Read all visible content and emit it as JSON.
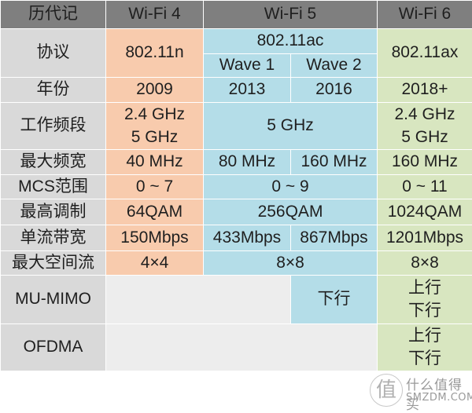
{
  "header": {
    "label_col": "历代记",
    "wifi4": "Wi-Fi 4",
    "wifi5": "Wi-Fi 5",
    "wifi6": "Wi-Fi 6"
  },
  "rows": {
    "protocol": {
      "label": "协议",
      "wifi4": "802.11n",
      "wifi5": "802.11ac",
      "wifi5_wave1": "Wave 1",
      "wifi5_wave2": "Wave 2",
      "wifi6": "802.11ax"
    },
    "year": {
      "label": "年份",
      "wifi4": "2009",
      "wifi5_wave1": "2013",
      "wifi5_wave2": "2016",
      "wifi6": "2018+"
    },
    "bands": {
      "label": "工作频段",
      "wifi4": [
        "2.4 GHz",
        "5 GHz"
      ],
      "wifi5": "5 GHz",
      "wifi6": [
        "2.4 GHz",
        "5 GHz"
      ]
    },
    "max_bandwidth": {
      "label": "最大频宽",
      "wifi4": "40 MHz",
      "wifi5_wave1": "80 MHz",
      "wifi5_wave2": "160 MHz",
      "wifi6": "160 MHz"
    },
    "mcs": {
      "label": "MCS范围",
      "wifi4": "0 ~ 7",
      "wifi5": "0 ~ 9",
      "wifi6": "0 ~ 11"
    },
    "modulation": {
      "label": "最高调制",
      "wifi4": "64QAM",
      "wifi5": "256QAM",
      "wifi6": "1024QAM"
    },
    "stream_bandwidth": {
      "label": "单流带宽",
      "wifi4": "150Mbps",
      "wifi5_wave1": "433Mbps",
      "wifi5_wave2": "867Mbps",
      "wifi6": "1201Mbps"
    },
    "spatial_streams": {
      "label": "最大空间流",
      "wifi4": "4×4",
      "wifi5": "8×8",
      "wifi6": "8×8"
    },
    "mu_mimo": {
      "label": "MU-MIMO",
      "wifi5_wave2": "下行",
      "wifi6": [
        "上行",
        "下行"
      ]
    },
    "ofdma": {
      "label": "OFDMA",
      "wifi6": [
        "上行",
        "下行"
      ]
    }
  },
  "watermark": {
    "glyph": "值",
    "site_cn": "什么值得买",
    "site_en": "SMZDM.COM"
  },
  "colors": {
    "header_bg": "#7f7f7f",
    "label_bg": "#d9d9d9",
    "wifi4_bg": "#f8cbad",
    "wifi5_bg": "#b4dde8",
    "wifi6_bg": "#d8e6c0",
    "empty_bg": "#ededed"
  }
}
